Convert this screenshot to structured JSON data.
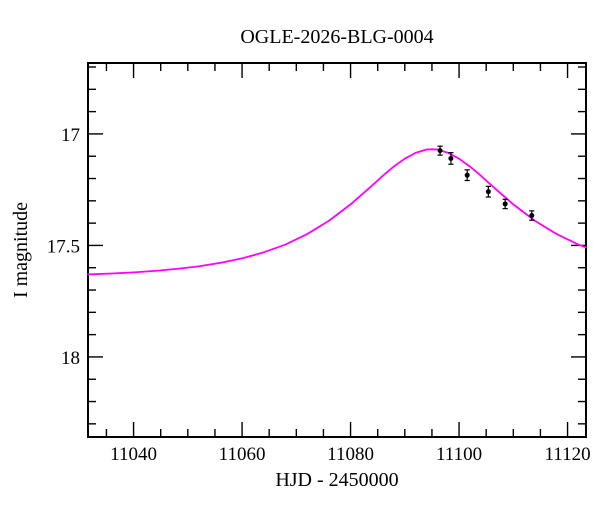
{
  "chart_data": {
    "type": "line",
    "title": "OGLE-2026-BLG-0004",
    "xlabel": "HJD - 2450000",
    "ylabel": "I magnitude",
    "grid": false,
    "legend": null,
    "y_axis_inverted_magnitudes": true,
    "x_range": [
      11031.6,
      11123.4
    ],
    "y_range": [
      16.682,
      18.359
    ],
    "x_major_ticks": [
      11040,
      11060,
      11080,
      11100,
      11120
    ],
    "x_major_tick_labels": [
      "11040",
      "11060",
      "11080",
      "11100",
      "11120"
    ],
    "x_minor_ticks": [
      11035,
      11045,
      11050,
      11055,
      11065,
      11070,
      11075,
      11085,
      11090,
      11095,
      11105,
      11110,
      11115
    ],
    "y_major_ticks": [
      17,
      17.5,
      18
    ],
    "y_major_tick_labels": [
      "17",
      "17.5",
      "18"
    ],
    "y_minor_ticks": [
      16.7,
      16.8,
      16.9,
      17.1,
      17.2,
      17.3,
      17.4,
      17.6,
      17.7,
      17.8,
      17.9,
      18.1,
      18.2,
      18.3
    ],
    "model_curve": {
      "name": "microlensing-model-curve",
      "color": "#ff00ff",
      "estimated_params": {
        "t0": 11095,
        "tE_days": 21.5,
        "u0": 0.685,
        "baseline_I_mag": 17.648,
        "peak_I_mag": 17.069
      },
      "points": [
        [
          11031.6,
          17.63
        ],
        [
          11036,
          17.626
        ],
        [
          11040,
          17.621
        ],
        [
          11044,
          17.614
        ],
        [
          11048,
          17.605
        ],
        [
          11052,
          17.594
        ],
        [
          11056,
          17.578
        ],
        [
          11060,
          17.558
        ],
        [
          11064,
          17.531
        ],
        [
          11068,
          17.496
        ],
        [
          11072,
          17.449
        ],
        [
          11076,
          17.39
        ],
        [
          11080,
          17.316
        ],
        [
          11084,
          17.231
        ],
        [
          11086,
          17.187
        ],
        [
          11088,
          17.146
        ],
        [
          11090,
          17.111
        ],
        [
          11092,
          17.085
        ],
        [
          11094,
          17.07
        ],
        [
          11095,
          17.069
        ],
        [
          11096,
          17.07
        ],
        [
          11098,
          17.085
        ],
        [
          11100,
          17.111
        ],
        [
          11102,
          17.146
        ],
        [
          11104,
          17.187
        ],
        [
          11106,
          17.231
        ],
        [
          11110,
          17.316
        ],
        [
          11114,
          17.39
        ],
        [
          11118,
          17.449
        ],
        [
          11122,
          17.496
        ],
        [
          11123.4,
          17.509
        ]
      ]
    },
    "data_points": {
      "name": "photometry-points",
      "color": "#000000",
      "points_t_mag_err": [
        [
          11096.5,
          17.075,
          0.02
        ],
        [
          11098.5,
          17.11,
          0.026
        ],
        [
          11101.5,
          17.185,
          0.024
        ],
        [
          11105.4,
          17.259,
          0.024
        ],
        [
          11108.5,
          17.314,
          0.021
        ],
        [
          11113.4,
          17.366,
          0.021
        ]
      ]
    },
    "colors": {
      "background": "#ffffff",
      "axis": "#000000",
      "curve": "#ff00ff",
      "points": "#000000"
    }
  }
}
